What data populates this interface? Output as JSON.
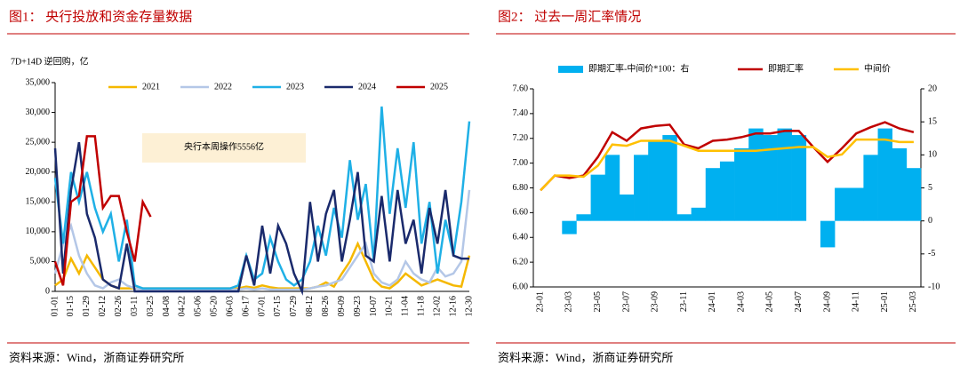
{
  "chart_data": [
    {
      "type": "line",
      "figure_title": "图1：  央行投放和资金存量数据",
      "ylabel": "7D+14D 逆回购，亿",
      "annotation": "央行本周操作5556亿",
      "source": "资料来源：Wind，浙商证券研究所",
      "categories": [
        "01-01",
        null,
        "01-15",
        null,
        "01-29",
        null,
        "02-12",
        null,
        "02-26",
        null,
        "03-11",
        null,
        "03-25",
        null,
        "04-08",
        null,
        "04-22",
        null,
        "05-06",
        null,
        "05-20",
        null,
        "06-03",
        null,
        "06-17",
        null,
        "07-01",
        null,
        "07-15",
        null,
        "07-29",
        null,
        "08-12",
        null,
        "08-26",
        null,
        "09-09",
        null,
        "09-23",
        null,
        "10-07",
        null,
        "10-21",
        null,
        "11-04",
        null,
        "11-18",
        null,
        "12-02",
        null,
        "12-16",
        null,
        "12-30"
      ],
      "ylim": [
        0,
        35000
      ],
      "yticks": [
        0,
        {
          "value": 5000,
          "label": "5,000"
        },
        {
          "value": 10000,
          "label": "10,000"
        },
        {
          "value": 15000,
          "label": "15,000"
        },
        {
          "value": 20000,
          "label": "20,000"
        },
        {
          "value": 25000,
          "label": "25,000"
        },
        {
          "value": 30000,
          "label": "30,000"
        },
        {
          "value": 35000,
          "label": "35,000"
        }
      ],
      "legend": "top",
      "series": [
        {
          "name": "2021",
          "color": "#f5b800",
          "values": [
            1000,
            2000,
            5500,
            3000,
            6000,
            4000,
            2000,
            1000,
            500,
            500,
            500,
            500,
            500,
            500,
            500,
            500,
            500,
            500,
            500,
            500,
            500,
            500,
            500,
            500,
            800,
            600,
            1000,
            700,
            500,
            500,
            500,
            500,
            500,
            800,
            1500,
            800,
            3000,
            5000,
            8000,
            5000,
            2000,
            800,
            500,
            1500,
            3000,
            2000,
            1000,
            1500,
            2000,
            1500,
            1000,
            800,
            6000
          ]
        },
        {
          "name": "2022",
          "color": "#b4c7e7",
          "values": [
            3000,
            8000,
            11000,
            6000,
            3000,
            1000,
            500,
            1500,
            2000,
            1000,
            500,
            300,
            300,
            300,
            300,
            300,
            300,
            300,
            300,
            300,
            300,
            300,
            300,
            300,
            500,
            300,
            500,
            300,
            300,
            300,
            300,
            300,
            500,
            800,
            1000,
            1500,
            2000,
            4000,
            6000,
            8000,
            3000,
            1500,
            1000,
            2000,
            5000,
            3000,
            2000,
            1500,
            4000,
            2500,
            3000,
            5000,
            17000
          ]
        },
        {
          "name": "2023",
          "color": "#1fb0e6",
          "values": [
            19000,
            8000,
            20000,
            15000,
            20000,
            14000,
            10000,
            13000,
            5000,
            12000,
            1000,
            500,
            500,
            500,
            500,
            500,
            500,
            500,
            500,
            500,
            500,
            500,
            500,
            1000,
            6000,
            2000,
            3000,
            9000,
            5000,
            2000,
            1000,
            2000,
            5000,
            11000,
            6000,
            14000,
            9000,
            22000,
            12000,
            18000,
            5000,
            31000,
            13000,
            24000,
            14000,
            25000,
            8000,
            15000,
            3000,
            12000,
            6000,
            15000,
            28500
          ]
        },
        {
          "name": "2024",
          "color": "#1a2a6c",
          "values": [
            24000,
            3000,
            17000,
            25000,
            13000,
            9000,
            2000,
            1000,
            500,
            8000,
            0,
            0,
            0,
            0,
            0,
            0,
            0,
            0,
            0,
            0,
            0,
            0,
            0,
            0,
            6000,
            1000,
            11000,
            3000,
            11000,
            8000,
            3000,
            0,
            15000,
            5000,
            13000,
            17000,
            5000,
            12000,
            20000,
            6000,
            5000,
            16000,
            5000,
            17000,
            8000,
            12000,
            3000,
            14000,
            8000,
            17000,
            6000,
            5500,
            5500
          ]
        },
        {
          "name": "2025",
          "color": "#c00000",
          "values": [
            5000,
            1000,
            15000,
            16000,
            26000,
            26000,
            14000,
            16000,
            16000,
            10000,
            5000,
            15000,
            12500,
            null,
            null,
            null,
            null,
            null,
            null,
            null,
            null,
            null,
            null,
            null,
            null,
            null,
            null,
            null,
            null,
            null,
            null,
            null,
            null,
            null,
            null,
            null,
            null,
            null,
            null,
            null,
            null,
            null,
            null,
            null,
            null,
            null,
            null,
            null,
            null,
            null,
            null,
            null,
            null
          ]
        }
      ]
    },
    {
      "type": "combo",
      "figure_title": "图2：  过去一周汇率情况",
      "source": "资料来源：Wind，浙商证券研究所",
      "categories": [
        "23-01",
        null,
        "23-03",
        null,
        "23-05",
        null,
        "23-07",
        null,
        "23-09",
        null,
        "23-11",
        null,
        "24-01",
        null,
        "24-03",
        null,
        "24-05",
        null,
        "24-07",
        null,
        "24-09",
        null,
        "24-11",
        null,
        "25-01",
        null,
        "25-03"
      ],
      "ylim": [
        6.0,
        7.6
      ],
      "yticks": [
        {
          "value": 6.0,
          "label": "6.00"
        },
        {
          "value": 6.2,
          "label": "6.20"
        },
        {
          "value": 6.4,
          "label": "6.40"
        },
        {
          "value": 6.6,
          "label": "6.60"
        },
        {
          "value": 6.8,
          "label": "6.80"
        },
        {
          "value": 7.0,
          "label": "7.00"
        },
        {
          "value": 7.2,
          "label": "7.20"
        },
        {
          "value": 7.4,
          "label": "7.40"
        },
        {
          "value": 7.6,
          "label": "7.60"
        }
      ],
      "y2lim": [
        -10,
        20
      ],
      "y2ticks": [
        -10,
        -5,
        0,
        5,
        10,
        15,
        20
      ],
      "legend": "top",
      "series": [
        {
          "name": "即期汇率-中间价*100：右",
          "type": "bar",
          "axis": "y2",
          "color": "#00b0f0",
          "values": [
            0,
            0,
            -2,
            1,
            7,
            10,
            4,
            10,
            12,
            13,
            1,
            2,
            8,
            9,
            11,
            14,
            13,
            14,
            13,
            0,
            -4,
            5,
            5,
            10,
            14,
            11,
            8
          ]
        },
        {
          "name": "即期汇率",
          "type": "line",
          "color": "#c00000",
          "values": [
            6.78,
            6.9,
            6.88,
            6.9,
            7.05,
            7.25,
            7.18,
            7.28,
            7.3,
            7.31,
            7.15,
            7.12,
            7.18,
            7.19,
            7.21,
            7.24,
            7.24,
            7.26,
            7.26,
            7.13,
            7.01,
            7.12,
            7.24,
            7.29,
            7.33,
            7.28,
            7.25
          ]
        },
        {
          "name": "中间价",
          "type": "line",
          "color": "#ffc000",
          "values": [
            6.78,
            6.9,
            6.9,
            6.89,
            6.98,
            7.15,
            7.14,
            7.18,
            7.18,
            7.18,
            7.14,
            7.1,
            7.1,
            7.1,
            7.1,
            7.1,
            7.11,
            7.12,
            7.13,
            7.13,
            7.05,
            7.07,
            7.19,
            7.19,
            7.19,
            7.17,
            7.17
          ]
        }
      ]
    }
  ]
}
